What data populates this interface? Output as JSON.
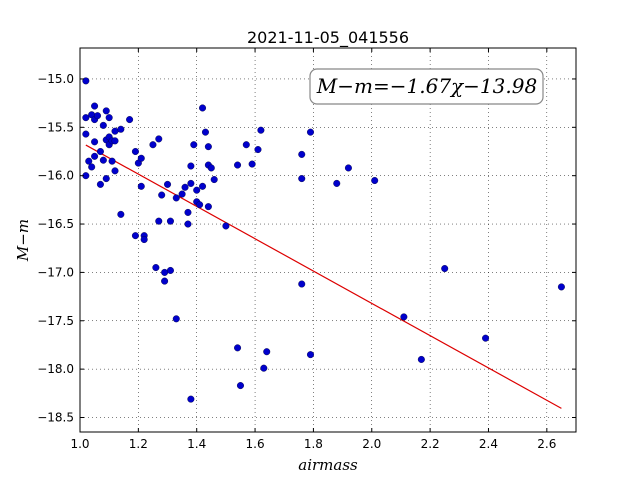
{
  "chart_data": {
    "type": "scatter",
    "title": "2021-11-05_041556",
    "xlabel": "airmass",
    "ylabel": "M−m",
    "xlim": [
      1.0,
      2.7
    ],
    "ylim": [
      -18.65,
      -14.68
    ],
    "y_inverted": true,
    "grid": true,
    "grid_style": "dotted",
    "xticks": [
      "1.0",
      "1.2",
      "1.4",
      "1.6",
      "1.8",
      "2.0",
      "2.2",
      "2.4",
      "2.6"
    ],
    "xtick_values": [
      1.0,
      1.2,
      1.4,
      1.6,
      1.8,
      2.0,
      2.2,
      2.4,
      2.6
    ],
    "yticks": [
      "−15.0",
      "−15.5",
      "−16.0",
      "−16.5",
      "−17.0",
      "−17.5",
      "−18.0",
      "−18.5"
    ],
    "ytick_values": [
      -15.0,
      -15.5,
      -16.0,
      -16.5,
      -17.0,
      -17.5,
      -18.0,
      -18.5
    ],
    "annotation": "M−m=−1.67χ−13.98",
    "point_color": "#0000cc",
    "fit_color": "#dd0000",
    "fit_line": {
      "slope": -1.67,
      "intercept": -13.98,
      "x": [
        1.02,
        2.65
      ]
    },
    "points": [
      [
        1.02,
        -15.02
      ],
      [
        1.02,
        -15.4
      ],
      [
        1.02,
        -15.57
      ],
      [
        1.03,
        -15.85
      ],
      [
        1.02,
        -16.0
      ],
      [
        1.04,
        -15.37
      ],
      [
        1.04,
        -15.91
      ],
      [
        1.05,
        -15.28
      ],
      [
        1.05,
        -15.42
      ],
      [
        1.05,
        -15.65
      ],
      [
        1.05,
        -15.8
      ],
      [
        1.06,
        -15.38
      ],
      [
        1.07,
        -15.75
      ],
      [
        1.07,
        -16.09
      ],
      [
        1.08,
        -15.48
      ],
      [
        1.08,
        -15.84
      ],
      [
        1.09,
        -15.33
      ],
      [
        1.09,
        -15.63
      ],
      [
        1.1,
        -15.4
      ],
      [
        1.1,
        -15.6
      ],
      [
        1.1,
        -15.68
      ],
      [
        1.09,
        -16.03
      ],
      [
        1.11,
        -15.64
      ],
      [
        1.11,
        -15.85
      ],
      [
        1.12,
        -15.54
      ],
      [
        1.12,
        -15.64
      ],
      [
        1.12,
        -15.95
      ],
      [
        1.14,
        -15.52
      ],
      [
        1.14,
        -16.4
      ],
      [
        1.17,
        -15.42
      ],
      [
        1.19,
        -15.75
      ],
      [
        1.19,
        -16.62
      ],
      [
        1.2,
        -15.87
      ],
      [
        1.21,
        -15.82
      ],
      [
        1.21,
        -16.11
      ],
      [
        1.22,
        -16.62
      ],
      [
        1.22,
        -16.66
      ],
      [
        1.25,
        -15.68
      ],
      [
        1.26,
        -16.95
      ],
      [
        1.27,
        -15.62
      ],
      [
        1.27,
        -16.47
      ],
      [
        1.28,
        -16.2
      ],
      [
        1.29,
        -17.0
      ],
      [
        1.29,
        -17.09
      ],
      [
        1.3,
        -16.09
      ],
      [
        1.31,
        -16.47
      ],
      [
        1.31,
        -16.98
      ],
      [
        1.33,
        -16.23
      ],
      [
        1.33,
        -17.48
      ],
      [
        1.35,
        -16.19
      ],
      [
        1.36,
        -16.12
      ],
      [
        1.37,
        -16.38
      ],
      [
        1.37,
        -16.5
      ],
      [
        1.38,
        -15.9
      ],
      [
        1.38,
        -16.08
      ],
      [
        1.38,
        -18.31
      ],
      [
        1.39,
        -15.68
      ],
      [
        1.4,
        -16.15
      ],
      [
        1.4,
        -16.27
      ],
      [
        1.41,
        -16.3
      ],
      [
        1.42,
        -15.3
      ],
      [
        1.42,
        -16.11
      ],
      [
        1.43,
        -15.55
      ],
      [
        1.44,
        -15.89
      ],
      [
        1.44,
        -16.32
      ],
      [
        1.44,
        -15.7
      ],
      [
        1.45,
        -15.92
      ],
      [
        1.46,
        -16.04
      ],
      [
        1.5,
        -16.52
      ],
      [
        1.54,
        -15.89
      ],
      [
        1.54,
        -17.78
      ],
      [
        1.55,
        -18.17
      ],
      [
        1.57,
        -15.68
      ],
      [
        1.59,
        -15.88
      ],
      [
        1.61,
        -15.73
      ],
      [
        1.62,
        -15.53
      ],
      [
        1.63,
        -17.99
      ],
      [
        1.64,
        -17.82
      ],
      [
        1.76,
        -15.78
      ],
      [
        1.76,
        -16.03
      ],
      [
        1.76,
        -17.12
      ],
      [
        1.79,
        -15.55
      ],
      [
        1.79,
        -17.85
      ],
      [
        1.88,
        -16.08
      ],
      [
        1.92,
        -15.92
      ],
      [
        2.01,
        -16.05
      ],
      [
        2.11,
        -17.46
      ],
      [
        2.17,
        -17.9
      ],
      [
        2.25,
        -16.96
      ],
      [
        2.39,
        -17.68
      ],
      [
        2.65,
        -17.15
      ]
    ]
  }
}
